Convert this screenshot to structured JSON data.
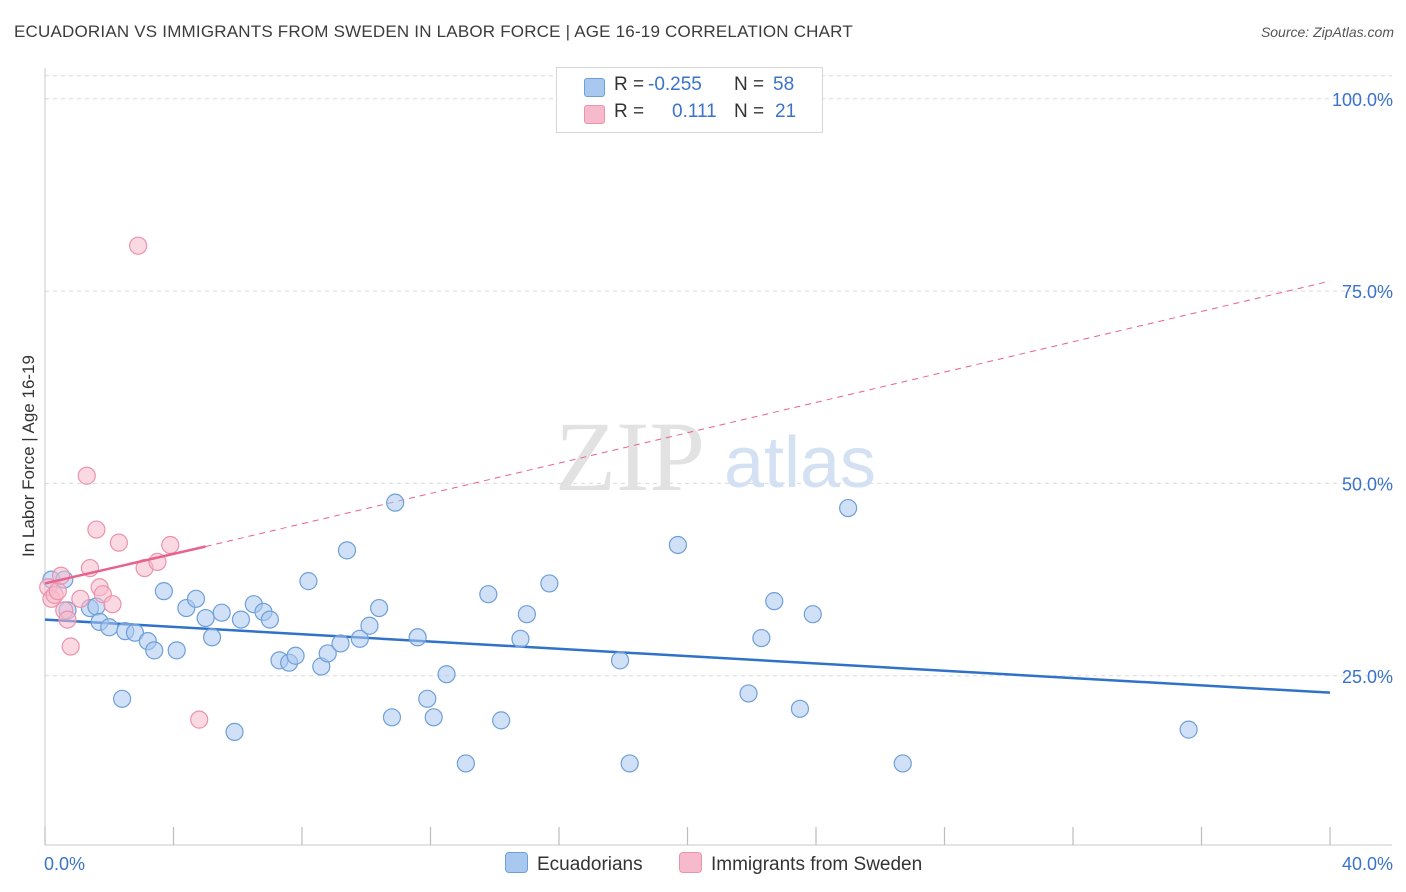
{
  "title": "ECUADORIAN VS IMMIGRANTS FROM SWEDEN IN LABOR FORCE | AGE 16-19 CORRELATION CHART",
  "source": "Source: ZipAtlas.com",
  "watermark": {
    "zip": "ZIP",
    "atlas": "atlas"
  },
  "legend": {
    "rows": [
      {
        "r_label": "R =",
        "r_value": "-0.255",
        "n_label": "N =",
        "n_value": "58"
      },
      {
        "r_label": "R =",
        "r_value": "0.111",
        "n_label": "N =",
        "n_value": "21"
      }
    ]
  },
  "bottom_legend": [
    "Ecuadorians",
    "Immigrants from Sweden"
  ],
  "colors": {
    "blue_fill": "#a9c8f0",
    "blue_stroke": "#6f9fd8",
    "blue_line": "#2f72c8",
    "pink_fill": "#f7b9cc",
    "pink_stroke": "#eb93ad",
    "pink_line": "#e8628e",
    "axis_text": "#3a73c8",
    "grid": "#d9d9d9"
  },
  "chart_data": {
    "type": "scatter",
    "title": "ECUADORIAN VS IMMIGRANTS FROM SWEDEN IN LABOR FORCE | AGE 16-19 CORRELATION CHART",
    "xlabel": "",
    "ylabel": "In Labor Force | Age 16-19",
    "xlim": [
      0,
      40
    ],
    "ylim": [
      3,
      104
    ],
    "x_tick_labels": [
      "0.0%",
      "40.0%"
    ],
    "y_ticks": [
      25,
      50,
      75,
      100
    ],
    "y_tick_labels": [
      "25.0%",
      "50.0%",
      "75.0%",
      "100.0%"
    ],
    "series": [
      {
        "name": "Ecuadorians",
        "r": -0.255,
        "n": 58,
        "points": [
          [
            0.2,
            37.5
          ],
          [
            0.6,
            37.5
          ],
          [
            0.7,
            33.5
          ],
          [
            1.4,
            33.8
          ],
          [
            1.6,
            34.0
          ],
          [
            1.7,
            32.0
          ],
          [
            2.0,
            31.3
          ],
          [
            2.4,
            22.0
          ],
          [
            2.5,
            30.8
          ],
          [
            2.8,
            30.6
          ],
          [
            3.2,
            29.5
          ],
          [
            3.4,
            28.3
          ],
          [
            3.7,
            36.0
          ],
          [
            4.1,
            28.3
          ],
          [
            4.4,
            33.8
          ],
          [
            4.7,
            35.0
          ],
          [
            5.0,
            32.5
          ],
          [
            5.2,
            30.0
          ],
          [
            5.5,
            33.2
          ],
          [
            5.9,
            17.7
          ],
          [
            6.1,
            32.3
          ],
          [
            6.5,
            34.3
          ],
          [
            6.8,
            33.3
          ],
          [
            7.0,
            32.3
          ],
          [
            7.3,
            27.0
          ],
          [
            7.6,
            26.7
          ],
          [
            7.8,
            27.6
          ],
          [
            8.2,
            37.3
          ],
          [
            8.6,
            26.2
          ],
          [
            8.8,
            27.9
          ],
          [
            9.2,
            29.2
          ],
          [
            9.4,
            41.3
          ],
          [
            9.8,
            29.8
          ],
          [
            10.1,
            31.5
          ],
          [
            10.4,
            33.8
          ],
          [
            10.8,
            19.6
          ],
          [
            10.9,
            47.5
          ],
          [
            11.6,
            30.0
          ],
          [
            11.9,
            22.0
          ],
          [
            12.1,
            19.6
          ],
          [
            12.5,
            25.2
          ],
          [
            13.1,
            13.6
          ],
          [
            13.8,
            35.6
          ],
          [
            14.2,
            19.2
          ],
          [
            14.8,
            29.8
          ],
          [
            15.0,
            33.0
          ],
          [
            15.7,
            37.0
          ],
          [
            17.9,
            27.0
          ],
          [
            18.2,
            13.6
          ],
          [
            19.7,
            42.0
          ],
          [
            21.9,
            22.7
          ],
          [
            22.3,
            29.9
          ],
          [
            22.7,
            34.7
          ],
          [
            23.5,
            20.7
          ],
          [
            23.9,
            33.0
          ],
          [
            25.0,
            46.8
          ],
          [
            26.7,
            13.6
          ],
          [
            35.6,
            18.0
          ]
        ],
        "trend": {
          "x": [
            0,
            40
          ],
          "y": [
            32.3,
            22.8
          ]
        }
      },
      {
        "name": "Immigrants from Sweden",
        "r": 0.111,
        "n": 21,
        "points": [
          [
            0.1,
            36.5
          ],
          [
            0.2,
            35.0
          ],
          [
            0.3,
            35.5
          ],
          [
            0.4,
            36.0
          ],
          [
            0.5,
            38.0
          ],
          [
            0.6,
            33.5
          ],
          [
            0.7,
            32.3
          ],
          [
            0.8,
            28.8
          ],
          [
            1.1,
            35.0
          ],
          [
            1.3,
            51.0
          ],
          [
            1.4,
            39.0
          ],
          [
            1.6,
            44.0
          ],
          [
            1.7,
            36.5
          ],
          [
            1.8,
            35.6
          ],
          [
            2.1,
            34.3
          ],
          [
            2.3,
            42.3
          ],
          [
            2.9,
            80.9
          ],
          [
            3.1,
            39.0
          ],
          [
            3.5,
            39.8
          ],
          [
            3.9,
            42.0
          ],
          [
            4.8,
            19.3
          ]
        ],
        "trend": {
          "x": [
            0,
            5
          ],
          "y": [
            37.0,
            41.8
          ]
        },
        "trend_extension": {
          "x": [
            5,
            40
          ],
          "y": [
            41.8,
            76.3
          ]
        }
      }
    ]
  }
}
